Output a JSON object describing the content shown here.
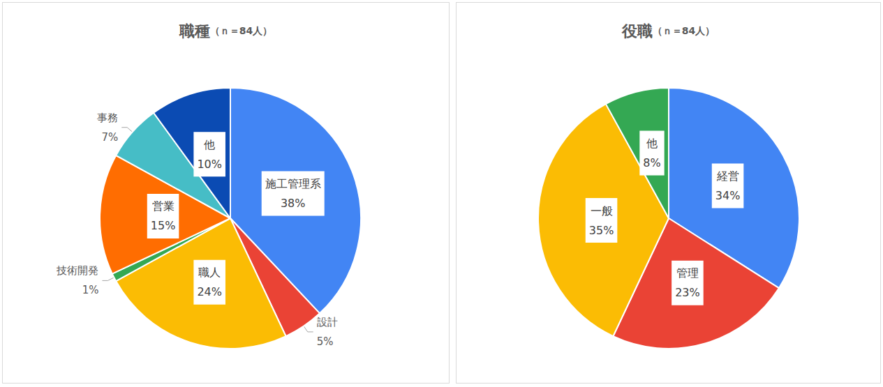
{
  "chart_data": [
    {
      "type": "pie",
      "title": "職種",
      "subtitle": "（ｎ＝84人）",
      "categories": [
        "施工管理系",
        "設計",
        "職人",
        "技術開発",
        "営業",
        "事務",
        "他"
      ],
      "values": [
        38,
        5,
        24,
        1,
        15,
        7,
        10
      ],
      "value_labels": [
        "38%",
        "5%",
        "24%",
        "1%",
        "15%",
        "7%",
        "10%"
      ],
      "colors": [
        "#4285f4",
        "#ea4335",
        "#fbbc04",
        "#34a853",
        "#ff6d01",
        "#46bdc6",
        "#0b4bb3"
      ],
      "data_labels": true
    },
    {
      "type": "pie",
      "title": "役職",
      "subtitle": "（ｎ＝84人）",
      "categories": [
        "経営",
        "管理",
        "一般",
        "他"
      ],
      "values": [
        34,
        23,
        35,
        8
      ],
      "value_labels": [
        "34%",
        "23%",
        "35%",
        "8%"
      ],
      "colors": [
        "#4285f4",
        "#ea4335",
        "#fbbc04",
        "#34a853"
      ],
      "data_labels": true
    }
  ]
}
